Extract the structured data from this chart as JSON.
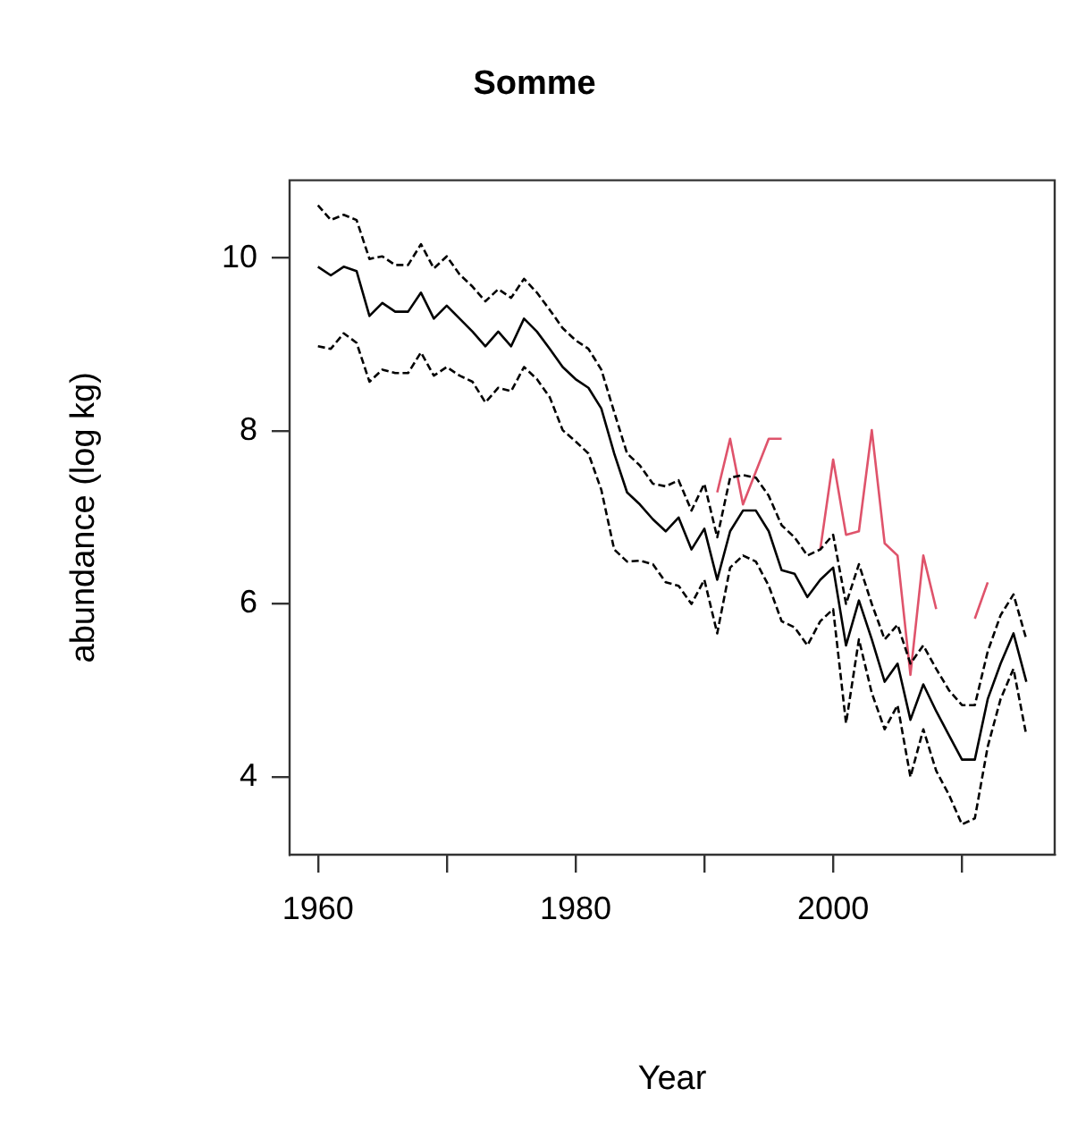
{
  "chart_data": {
    "type": "line",
    "title": "Somme",
    "xlabel": "Year",
    "ylabel": "abundance (log kg)",
    "x": [
      1960,
      1961,
      1962,
      1963,
      1964,
      1965,
      1966,
      1967,
      1968,
      1969,
      1970,
      1971,
      1972,
      1973,
      1974,
      1975,
      1976,
      1977,
      1978,
      1979,
      1980,
      1981,
      1982,
      1983,
      1984,
      1985,
      1986,
      1987,
      1988,
      1989,
      1990,
      1991,
      1992,
      1993,
      1994,
      1995,
      1996,
      1997,
      1998,
      1999,
      2000,
      2001,
      2002,
      2003,
      2004,
      2005,
      2006,
      2007,
      2008,
      2009,
      2010,
      2011,
      2012,
      2013,
      2014,
      2015
    ],
    "xlim": [
      1957.8,
      2017.2
    ],
    "xticks": [
      1960,
      {
        "value": 1970,
        "label": null
      },
      1980,
      {
        "value": 1990,
        "label": null
      },
      2000,
      {
        "value": 2010,
        "label": null
      }
    ],
    "ylim": [
      3.1,
      10.9
    ],
    "yticks": [
      4,
      6,
      8,
      10
    ],
    "legend": false,
    "series": [
      {
        "color": "#000000",
        "line_style": "solid",
        "values": [
          9.9,
          9.8,
          9.9,
          9.85,
          9.33,
          9.48,
          9.38,
          9.38,
          9.6,
          9.3,
          9.45,
          9.3,
          9.15,
          8.98,
          9.15,
          8.98,
          9.3,
          9.15,
          8.95,
          8.74,
          8.6,
          8.5,
          8.26,
          7.74,
          7.29,
          7.15,
          6.98,
          6.84,
          7.0,
          6.63,
          6.87,
          6.28,
          6.84,
          7.08,
          7.08,
          6.84,
          6.39,
          6.35,
          6.08,
          6.28,
          6.42,
          5.52,
          6.04,
          5.59,
          5.1,
          5.31,
          4.66,
          5.07,
          4.76,
          4.48,
          4.2,
          4.2,
          4.9,
          5.31,
          5.66,
          5.1
        ]
      },
      {
        "color": "#000000",
        "line_style": "dashed",
        "values": [
          10.61,
          10.44,
          10.5,
          10.44,
          9.99,
          10.02,
          9.92,
          9.92,
          10.16,
          9.88,
          10.02,
          9.81,
          9.67,
          9.5,
          9.64,
          9.54,
          9.76,
          9.6,
          9.4,
          9.19,
          9.05,
          8.95,
          8.71,
          8.22,
          7.74,
          7.6,
          7.39,
          7.36,
          7.43,
          7.08,
          7.39,
          6.77,
          7.46,
          7.49,
          7.46,
          7.25,
          6.91,
          6.77,
          6.56,
          6.63,
          6.8,
          6.0,
          6.46,
          6.0,
          5.59,
          5.76,
          5.31,
          5.52,
          5.25,
          5.0,
          4.83,
          4.83,
          5.45,
          5.87,
          6.11,
          5.59
        ]
      },
      {
        "color": "#000000",
        "line_style": "dashed",
        "values": [
          8.98,
          8.95,
          9.13,
          9.02,
          8.57,
          8.71,
          8.67,
          8.67,
          8.91,
          8.64,
          8.74,
          8.64,
          8.57,
          8.33,
          8.5,
          8.46,
          8.74,
          8.6,
          8.39,
          8.01,
          7.88,
          7.74,
          7.32,
          6.63,
          6.49,
          6.5,
          6.46,
          6.25,
          6.21,
          6.0,
          6.28,
          5.66,
          6.42,
          6.56,
          6.49,
          6.21,
          5.8,
          5.73,
          5.52,
          5.8,
          5.94,
          4.62,
          5.59,
          4.97,
          4.55,
          4.83,
          4.0,
          4.55,
          4.07,
          3.79,
          3.45,
          3.52,
          4.35,
          4.9,
          5.25,
          4.48
        ]
      },
      {
        "color": "#df536b",
        "line_style": "solid",
        "values": [
          null,
          null,
          null,
          null,
          null,
          null,
          null,
          null,
          null,
          null,
          null,
          null,
          null,
          null,
          null,
          null,
          null,
          null,
          null,
          null,
          null,
          null,
          null,
          null,
          null,
          null,
          null,
          null,
          null,
          null,
          null,
          7.29,
          7.91,
          7.15,
          7.53,
          7.91,
          7.91,
          null,
          null,
          6.63,
          7.67,
          6.8,
          6.84,
          8.01,
          6.7,
          6.56,
          5.18,
          6.56,
          5.94,
          null,
          null,
          5.83,
          6.25,
          null,
          null,
          null
        ]
      }
    ]
  }
}
